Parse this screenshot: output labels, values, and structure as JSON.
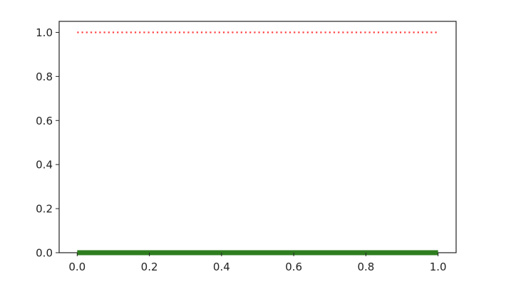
{
  "chart_data": {
    "type": "line",
    "title": "",
    "xlabel": "",
    "ylabel": "",
    "xlim": [
      -0.05,
      1.05
    ],
    "ylim": [
      0.0,
      1.05
    ],
    "grid": false,
    "legend": "none",
    "x_ticks": [
      "0.0",
      "0.2",
      "0.4",
      "0.6",
      "0.8",
      "1.0"
    ],
    "y_ticks": [
      "0.0",
      "0.2",
      "0.4",
      "0.6",
      "0.8",
      "1.0"
    ],
    "series": [
      {
        "style": "dotted",
        "color": "#ff4040",
        "x": [
          0.0,
          1.0
        ],
        "y": [
          1.0,
          1.0
        ]
      },
      {
        "style": "solid-thick",
        "color": "#2e7d1f",
        "x": [
          0.0,
          1.0
        ],
        "y": [
          0.0,
          0.0
        ]
      }
    ]
  }
}
